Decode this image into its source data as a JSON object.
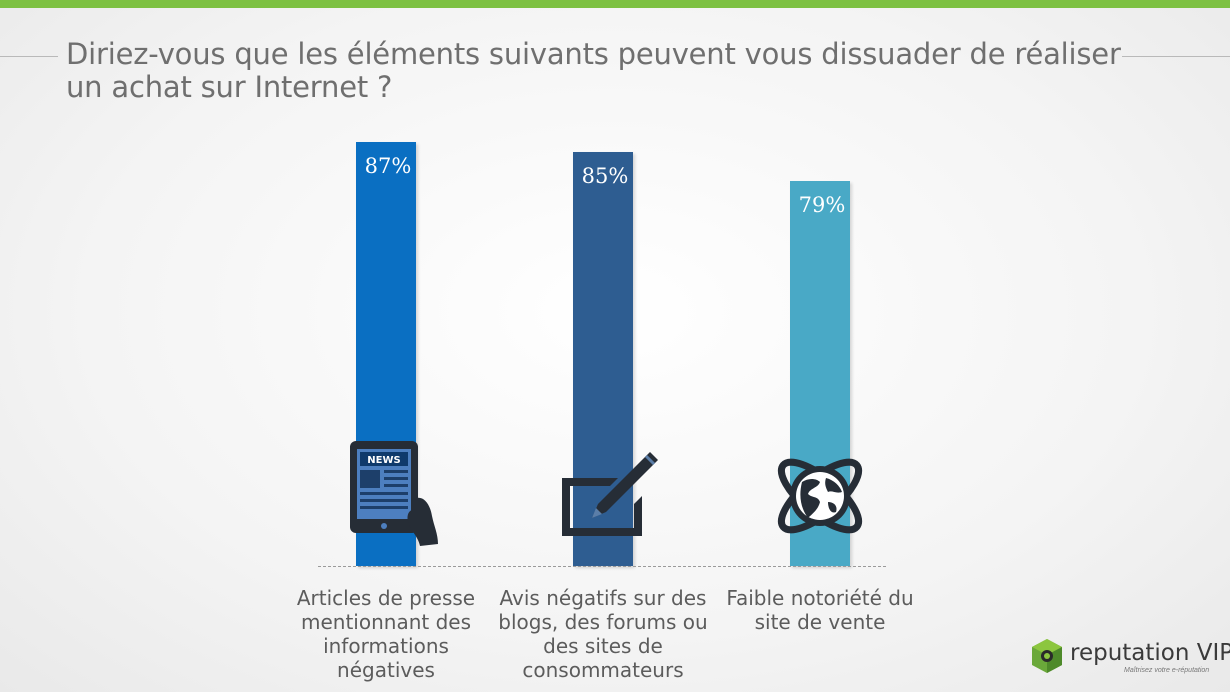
{
  "title": "Diriez-vous que les éléments suivants peuvent vous dissuader de réaliser un achat sur Internet ?",
  "colors": {
    "accent_bar": "#7dc142",
    "bar1": "#0a6fc2",
    "bar2": "#2e5d91",
    "bar3": "#49a9c6",
    "icon": "#262d36"
  },
  "chart_data": {
    "type": "bar",
    "title": "Diriez-vous que les éléments suivants peuvent vous dissuader de réaliser un achat sur Internet ?",
    "categories": [
      "Articles de presse mentionnant des informations négatives",
      "Avis négatifs sur des blogs, des forums ou des sites de consommateurs",
      "Faible notoriété du site de vente"
    ],
    "values": [
      87,
      85,
      79
    ],
    "value_labels": [
      "87%",
      "85%",
      "79%"
    ],
    "icons": [
      "news-tablet-icon",
      "pen-writing-icon",
      "globe-orbit-icon"
    ],
    "ylim": [
      0,
      100
    ],
    "grid": false
  },
  "logo": {
    "name": "reputation VIP",
    "tagline": "Maîtrisez votre e-réputation"
  }
}
